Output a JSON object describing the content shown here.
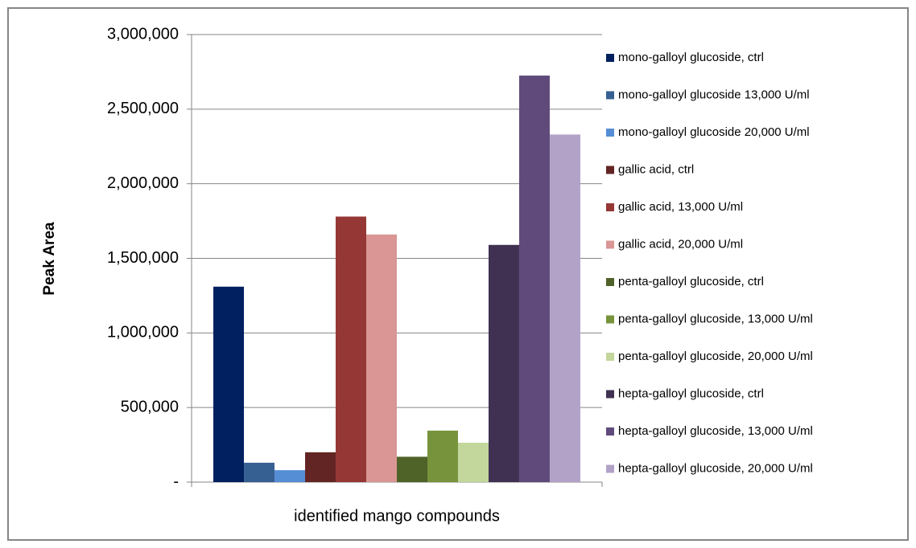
{
  "chart_data": {
    "type": "bar",
    "x_label": "identified mango compounds",
    "y_label": "Peak Area",
    "categories": [
      null
    ],
    "series": [
      {
        "name": "mono-galloyl glucoside, ctrl",
        "color": "#002060",
        "values": [
          1310000
        ]
      },
      {
        "name": "mono-galloyl glucoside 13,000 U/ml",
        "color": "#376092",
        "values": [
          130000
        ]
      },
      {
        "name": "mono-galloyl glucoside 20,000 U/ml",
        "color": "#558ed5",
        "values": [
          80000
        ]
      },
      {
        "name": "gallic acid, ctrl",
        "color": "#632523",
        "values": [
          200000
        ]
      },
      {
        "name": "gallic acid, 13,000 U/ml",
        "color": "#953735",
        "values": [
          1780000
        ]
      },
      {
        "name": "gallic acid, 20,000 U/ml",
        "color": "#d99694",
        "values": [
          1660000
        ]
      },
      {
        "name": "penta-galloyl glucoside, ctrl",
        "color": "#4f6228",
        "values": [
          170000
        ]
      },
      {
        "name": "penta-galloyl glucoside, 13,000 U/ml",
        "color": "#77933c",
        "values": [
          345000
        ]
      },
      {
        "name": "penta-galloyl glucoside, 20,000 U/ml",
        "color": "#c3d69b",
        "values": [
          264000
        ]
      },
      {
        "name": "hepta-galloyl glucoside, ctrl",
        "color": "#403152",
        "values": [
          1590000
        ]
      },
      {
        "name": "hepta-galloyl glucoside, 13,000 U/ml",
        "color": "#604a7b",
        "values": [
          2725000
        ]
      },
      {
        "name": "hepta-galloyl glucoside, 20,000 U/ml",
        "color": "#b3a2c7",
        "values": [
          2330000
        ]
      }
    ],
    "ylim": [
      0,
      3000000
    ],
    "yticks": [
      {
        "value": 0,
        "label": "-"
      },
      {
        "value": 500000,
        "label": "500,000"
      },
      {
        "value": 1000000,
        "label": "1,000,000"
      },
      {
        "value": 1500000,
        "label": "1,500,000"
      },
      {
        "value": 2000000,
        "label": "2,000,000"
      },
      {
        "value": 2500000,
        "label": "2,500,000"
      },
      {
        "value": 3000000,
        "label": "3,000,000"
      }
    ],
    "grid": true,
    "legend": "right"
  }
}
